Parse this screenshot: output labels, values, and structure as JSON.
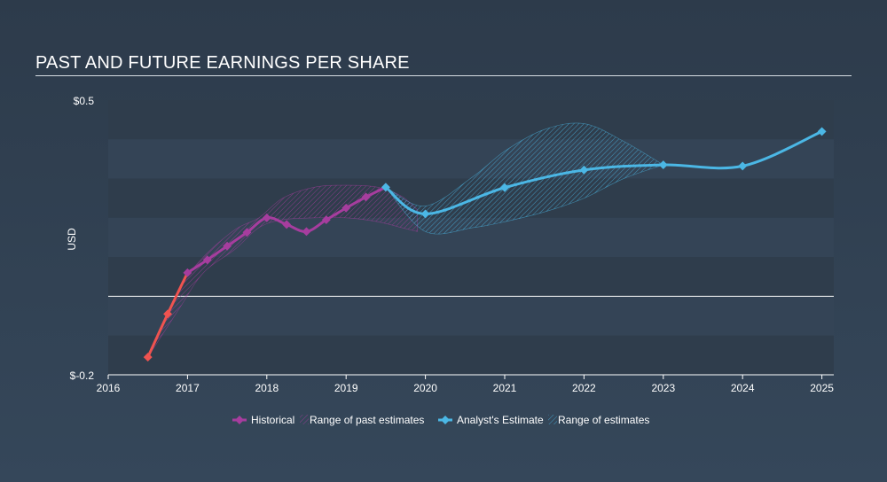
{
  "title": "PAST AND FUTURE EARNINGS PER SHARE",
  "chart_data": {
    "type": "line",
    "title": "PAST AND FUTURE EARNINGS PER SHARE",
    "ylabel": "USD",
    "xlabel": "",
    "xlim": [
      2016,
      2025.15
    ],
    "ylim": [
      -0.2,
      0.5
    ],
    "y_tick_labels": [
      "$0.5",
      "$-0.2"
    ],
    "x_ticks": [
      2016,
      2017,
      2018,
      2019,
      2020,
      2021,
      2022,
      2023,
      2024,
      2025
    ],
    "x_tick_labels": [
      "2016",
      "2017",
      "2018",
      "2019",
      "2020",
      "2021",
      "2022",
      "2023",
      "2024",
      "2025"
    ],
    "zero_line": 0,
    "grid": "banded",
    "colors": {
      "historical": "#a63d9e",
      "historical_negative": "#ef5350",
      "estimate": "#4bb7e5",
      "past_range": "#a63d9e",
      "future_range": "#4bb7e5"
    },
    "series": [
      {
        "name": "Historical",
        "x": [
          2016.5,
          2016.75,
          2017.0,
          2017.25,
          2017.5,
          2017.75,
          2018.0,
          2018.25,
          2018.5,
          2018.75,
          2019.0,
          2019.25,
          2019.5
        ],
        "values": [
          -0.155,
          -0.045,
          0.06,
          0.093,
          0.128,
          0.163,
          0.2,
          0.183,
          0.165,
          0.195,
          0.225,
          0.253,
          0.278
        ]
      },
      {
        "name": "Analyst's Estimate",
        "x": [
          2019.5,
          2020.0,
          2021.0,
          2022.0,
          2023.0,
          2024.0,
          2025.0
        ],
        "values": [
          0.278,
          0.21,
          0.277,
          0.322,
          0.335,
          0.332,
          0.42
        ]
      }
    ],
    "ranges": [
      {
        "name": "Range of past estimates",
        "x": [
          2016.5,
          2016.9,
          2017.2,
          2017.6,
          2017.9,
          2018.2,
          2018.6,
          2019.0,
          2019.4,
          2019.7,
          2019.9
        ],
        "low": [
          -0.155,
          -0.03,
          0.06,
          0.12,
          0.175,
          0.195,
          0.2,
          0.2,
          0.19,
          0.175,
          0.165
        ],
        "high": [
          -0.155,
          0.02,
          0.1,
          0.17,
          0.2,
          0.25,
          0.278,
          0.283,
          0.278,
          0.255,
          0.22
        ]
      },
      {
        "name": "Range of estimates",
        "x": [
          2019.5,
          2020.0,
          2020.6,
          2021.0,
          2021.5,
          2022.0,
          2022.5,
          2023.0
        ],
        "low": [
          0.278,
          0.165,
          0.175,
          0.19,
          0.215,
          0.25,
          0.3,
          0.335
        ],
        "high": [
          0.278,
          0.23,
          0.305,
          0.37,
          0.425,
          0.44,
          0.395,
          0.335
        ]
      }
    ],
    "legend": {
      "placement": "bottom-center",
      "items": [
        "Historical",
        "Range of past estimates",
        "Analyst's Estimate",
        "Range of estimates"
      ]
    }
  }
}
